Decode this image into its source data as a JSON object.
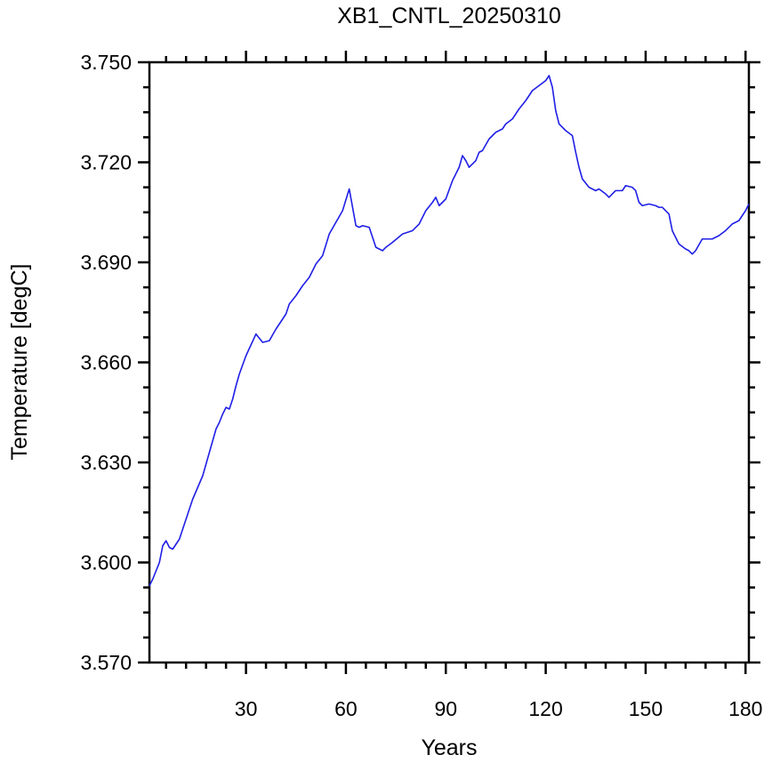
{
  "chart_data": {
    "type": "line",
    "title": "XB1_CNTL_20250310",
    "xlabel": "Years",
    "ylabel": "Temperature [degC]",
    "xlim": [
      1,
      181
    ],
    "ylim": [
      3.57,
      3.75
    ],
    "x_ticks": [
      30,
      60,
      90,
      120,
      150,
      180
    ],
    "x_tick_labels": [
      "30",
      "60",
      "90",
      "120",
      "150",
      "180"
    ],
    "y_ticks": [
      3.57,
      3.6,
      3.63,
      3.66,
      3.69,
      3.72,
      3.75
    ],
    "y_tick_labels": [
      "3.570",
      "3.600",
      "3.630",
      "3.660",
      "3.690",
      "3.720",
      "3.750"
    ],
    "grid": false,
    "line_color": "#1f1fe6",
    "series": [
      {
        "x": [
          1,
          2,
          4,
          5,
          6,
          7,
          8,
          9,
          10,
          12,
          14,
          17,
          19,
          21,
          22,
          23,
          24,
          25,
          26,
          27,
          28,
          30,
          33,
          35,
          37,
          39,
          40,
          42,
          43,
          45,
          47,
          49,
          51,
          53,
          55,
          57,
          59,
          61,
          63,
          64,
          65,
          67,
          68,
          69,
          70,
          71,
          72,
          74,
          77,
          80,
          82,
          83,
          84,
          86,
          87,
          88,
          90,
          92,
          94,
          95,
          96,
          97,
          99,
          100,
          101,
          103,
          105,
          107,
          108,
          110,
          112,
          114,
          116,
          118,
          120,
          121,
          122,
          123,
          124,
          126,
          128,
          129,
          130,
          131,
          133,
          135,
          136,
          138,
          139,
          141,
          143,
          144,
          146,
          147,
          148,
          149,
          151,
          153,
          154,
          155,
          156,
          157,
          158,
          160,
          162,
          163,
          164,
          165,
          167,
          170,
          171,
          172,
          174,
          176,
          178,
          180,
          181
        ],
        "y": [
          3.593,
          3.595,
          3.6,
          3.605,
          3.6065,
          3.6045,
          3.604,
          3.6055,
          3.607,
          3.613,
          3.619,
          3.626,
          3.633,
          3.64,
          3.642,
          3.6445,
          3.6465,
          3.646,
          3.649,
          3.653,
          3.6565,
          3.662,
          3.6685,
          3.666,
          3.6665,
          3.67,
          3.6715,
          3.6745,
          3.6775,
          3.68,
          3.683,
          3.6855,
          3.6895,
          3.692,
          3.6985,
          3.702,
          3.7055,
          3.712,
          3.701,
          3.7005,
          3.701,
          3.7005,
          3.6975,
          3.6945,
          3.694,
          3.6935,
          3.6945,
          3.696,
          3.6985,
          3.6995,
          3.7015,
          3.7035,
          3.7055,
          3.708,
          3.7095,
          3.707,
          3.709,
          3.7145,
          3.7185,
          3.722,
          3.7205,
          3.7185,
          3.7205,
          3.723,
          3.7235,
          3.727,
          3.729,
          3.73,
          3.7315,
          3.733,
          3.736,
          3.7385,
          3.7415,
          3.743,
          3.7445,
          3.746,
          3.7425,
          3.7355,
          3.7315,
          3.7295,
          3.728,
          3.723,
          3.7185,
          3.715,
          3.7125,
          3.7115,
          3.712,
          3.7105,
          3.7095,
          3.7115,
          3.7115,
          3.713,
          3.7125,
          3.7115,
          3.708,
          3.707,
          3.7075,
          3.707,
          3.7065,
          3.7065,
          3.7055,
          3.7045,
          3.6995,
          3.6955,
          3.694,
          3.6935,
          3.6925,
          3.6935,
          3.697,
          3.697,
          3.6975,
          3.698,
          3.6995,
          3.7015,
          3.7025,
          3.7055,
          3.7075
        ]
      }
    ]
  }
}
